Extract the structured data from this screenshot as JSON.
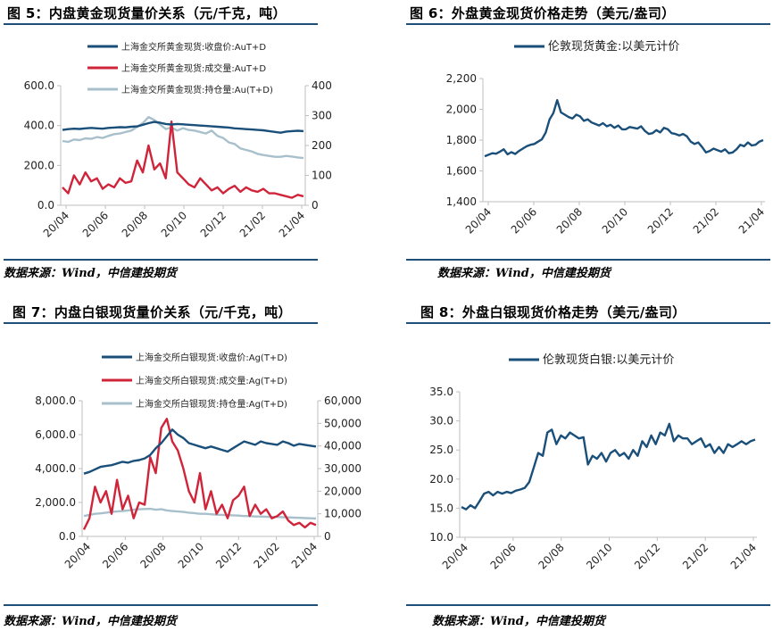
{
  "figures": [
    {
      "title": "图 5：内盘黄金现货量价关系（元/千克，吨）",
      "source": "数据来源：Wind，中信建投期货"
    },
    {
      "title": "图 6：外盘黄金现货价格走势（美元/盎司）",
      "source": "数据来源：Wind，中信建投期货"
    },
    {
      "title": "图 7：内盘白银现货量价关系（元/千克，吨）",
      "source": "数据来源：Wind，中信建投期货"
    },
    {
      "title": "图 8：外盘白银现货价格走势（美元/盎司）",
      "source": "数据来源：Wind，中信建投期货"
    }
  ],
  "colors": {
    "navy": "#1a4f7a",
    "red": "#d0243a",
    "gray": "#a8c0cc",
    "axis": "#bfbfbf",
    "rule": "#1f4e79"
  },
  "chart_data": [
    {
      "type": "line",
      "x_ticks": [
        "20/04",
        "20/06",
        "20/08",
        "20/10",
        "20/12",
        "21/02",
        "21/04"
      ],
      "y_left_ticks": [
        "0.0",
        "200.0",
        "400.0",
        "600.0"
      ],
      "y_left_lim": [
        0,
        600
      ],
      "y_right_ticks": [
        "0",
        "100",
        "200",
        "300",
        "400"
      ],
      "y_right_lim": [
        0,
        400
      ],
      "legend_position": "top-center",
      "series": [
        {
          "name": "上海金交所黄金现货:收盘价:AuT+D",
          "axis": "left",
          "color": "#1a4f7a",
          "values": [
            378,
            382,
            384,
            383,
            386,
            388,
            386,
            384,
            388,
            390,
            392,
            391,
            394,
            396,
            404,
            412,
            418,
            414,
            408,
            405,
            408,
            406,
            404,
            402,
            400,
            398,
            396,
            394,
            392,
            390,
            386,
            384,
            382,
            380,
            378,
            376,
            372,
            368,
            364,
            370,
            372,
            374,
            372
          ]
        },
        {
          "name": "上海金交所黄金现货:成交量:AuT+D",
          "axis": "right",
          "color": "#d0243a",
          "values": [
            60,
            40,
            100,
            70,
            110,
            80,
            90,
            55,
            70,
            60,
            90,
            75,
            80,
            150,
            110,
            200,
            120,
            140,
            90,
            280,
            110,
            90,
            70,
            60,
            90,
            70,
            50,
            60,
            40,
            55,
            65,
            45,
            60,
            50,
            45,
            55,
            40,
            40,
            35,
            30,
            25,
            35,
            30
          ]
        },
        {
          "name": "上海金交所黄金现货:持仓量:Au(T+D)",
          "axis": "right",
          "color": "#a8c0cc",
          "values": [
            215,
            212,
            220,
            218,
            224,
            222,
            228,
            225,
            232,
            238,
            240,
            245,
            250,
            262,
            275,
            295,
            285,
            270,
            255,
            260,
            250,
            258,
            252,
            250,
            245,
            240,
            250,
            232,
            225,
            210,
            205,
            190,
            185,
            180,
            172,
            168,
            165,
            162,
            162,
            165,
            163,
            160,
            158
          ]
        }
      ]
    },
    {
      "type": "line",
      "x_ticks": [
        "20/04",
        "20/06",
        "20/08",
        "20/10",
        "20/12",
        "21/02",
        "21/04"
      ],
      "y_ticks": [
        "1,400",
        "1,600",
        "1,800",
        "2,000",
        "2,200"
      ],
      "ylim": [
        1400,
        2200
      ],
      "legend_position": "top-center",
      "series": [
        {
          "name": "伦敦现货黄金:以美元计价",
          "color": "#1a4f7a",
          "values": [
            1695,
            1705,
            1715,
            1712,
            1725,
            1740,
            1708,
            1722,
            1710,
            1730,
            1745,
            1760,
            1770,
            1775,
            1790,
            1805,
            1850,
            1935,
            1975,
            2060,
            1980,
            1965,
            1950,
            1940,
            1965,
            1955,
            1925,
            1935,
            1915,
            1905,
            1895,
            1910,
            1890,
            1900,
            1880,
            1895,
            1870,
            1870,
            1885,
            1880,
            1875,
            1890,
            1860,
            1840,
            1845,
            1865,
            1850,
            1880,
            1870,
            1845,
            1840,
            1830,
            1840,
            1825,
            1790,
            1775,
            1785,
            1755,
            1720,
            1730,
            1745,
            1735,
            1725,
            1740,
            1715,
            1720,
            1740,
            1770,
            1760,
            1785,
            1765,
            1770,
            1790,
            1800
          ]
        }
      ]
    },
    {
      "type": "line",
      "x_ticks": [
        "20/04",
        "20/06",
        "20/08",
        "20/10",
        "20/12",
        "21/02",
        "21/04"
      ],
      "y_left_ticks": [
        "0.0",
        "2,000.0",
        "4,000.0",
        "6,000.0",
        "8,000.0"
      ],
      "y_left_lim": [
        0,
        8000
      ],
      "y_right_ticks": [
        "0",
        "10,000",
        "20,000",
        "30,000",
        "40,000",
        "50,000",
        "60,000"
      ],
      "y_right_lim": [
        0,
        60000
      ],
      "legend_position": "top-center",
      "series": [
        {
          "name": "上海金交所白银现货:收盘价:Ag(T+D)",
          "axis": "left",
          "color": "#1a4f7a",
          "values": [
            3700,
            3800,
            3950,
            4100,
            4150,
            4200,
            4300,
            4400,
            4350,
            4450,
            4500,
            4600,
            4800,
            5200,
            5500,
            5900,
            6300,
            6000,
            5800,
            5500,
            5400,
            5300,
            5200,
            5300,
            5200,
            5100,
            5000,
            5200,
            5400,
            5600,
            5500,
            5400,
            5600,
            5500,
            5450,
            5400,
            5600,
            5500,
            5350,
            5450,
            5400,
            5350,
            5300
          ]
        },
        {
          "name": "上海金交所白银现货:成交量:Ag(T+D)",
          "axis": "right",
          "color": "#d0243a",
          "values": [
            3000,
            8000,
            22000,
            15000,
            20000,
            10000,
            25000,
            12000,
            18000,
            8000,
            15000,
            14000,
            35000,
            28000,
            48000,
            52000,
            42000,
            38000,
            30000,
            20000,
            15000,
            28000,
            12000,
            20000,
            10000,
            14000,
            8000,
            16000,
            18000,
            22000,
            9000,
            14000,
            10000,
            12000,
            8000,
            9000,
            11000,
            7000,
            5000,
            6000,
            4000,
            6000,
            5000
          ]
        },
        {
          "name": "上海金交所白银现货:持仓量:Ag(T+D)",
          "axis": "right",
          "color": "#a8c0cc",
          "values": [
            9000,
            9500,
            10000,
            10200,
            10500,
            10800,
            11000,
            11200,
            11500,
            11800,
            12000,
            12100,
            12200,
            11800,
            12000,
            11500,
            11200,
            11000,
            10800,
            10500,
            10300,
            10000,
            10000,
            9800,
            9600,
            9500,
            9400,
            9300,
            9200,
            9000,
            9000,
            8800,
            8800,
            8700,
            8600,
            8600,
            8500,
            8400,
            8300,
            8200,
            8100,
            8000,
            7900
          ]
        }
      ]
    },
    {
      "type": "line",
      "x_ticks": [
        "20/04",
        "20/06",
        "20/08",
        "20/10",
        "20/12",
        "21/02",
        "21/04"
      ],
      "y_ticks": [
        "10.0",
        "15.0",
        "20.0",
        "25.0",
        "30.0",
        "35.0"
      ],
      "ylim": [
        10,
        35
      ],
      "legend_position": "top-center",
      "series": [
        {
          "name": "伦敦现货白银:以美元计价",
          "color": "#1a4f7a",
          "values": [
            15.2,
            14.8,
            15.5,
            15.0,
            16.2,
            17.5,
            17.8,
            17.2,
            17.8,
            17.5,
            17.8,
            17.6,
            18.0,
            18.2,
            18.5,
            19.5,
            22.0,
            24.5,
            24.0,
            28.0,
            28.5,
            26.0,
            27.5,
            27.0,
            28.0,
            27.5,
            27.0,
            27.2,
            22.5,
            24.0,
            23.5,
            24.5,
            23.0,
            24.5,
            25.0,
            24.0,
            24.5,
            23.5,
            25.0,
            24.0,
            26.5,
            25.5,
            27.5,
            26.0,
            28.0,
            27.5,
            29.5,
            26.5,
            27.5,
            27.0,
            27.0,
            26.0,
            26.5,
            27.0,
            25.5,
            26.0,
            24.5,
            25.5,
            24.5,
            26.0,
            25.5,
            26.0,
            26.5,
            26.0,
            26.5,
            26.8
          ]
        }
      ]
    }
  ]
}
